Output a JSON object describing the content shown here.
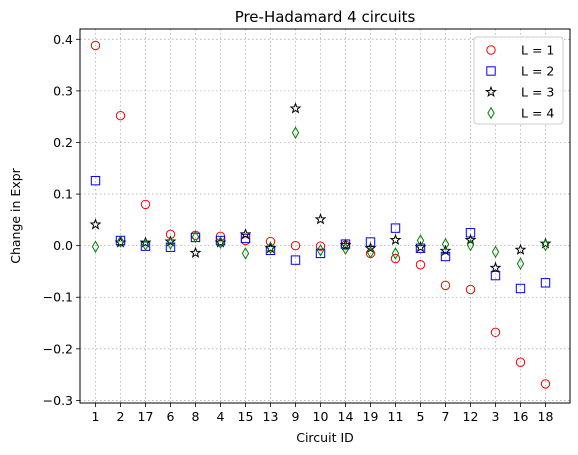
{
  "chart_data": {
    "type": "scatter",
    "title": "Pre-Hadamard 4 circuits",
    "xlabel": "Circuit ID",
    "ylabel": "Change in Expr",
    "categories": [
      "1",
      "2",
      "17",
      "6",
      "8",
      "4",
      "15",
      "13",
      "9",
      "10",
      "14",
      "19",
      "11",
      "5",
      "7",
      "12",
      "3",
      "16",
      "18"
    ],
    "ylim": [
      -0.305,
      0.42
    ],
    "yticks": [
      -0.3,
      -0.2,
      -0.1,
      0.0,
      0.1,
      0.2,
      0.3,
      0.4
    ],
    "ytick_labels": [
      "−0.3",
      "−0.2",
      "−0.1",
      "0.0",
      "0.1",
      "0.2",
      "0.3",
      "0.4"
    ],
    "grid": true,
    "legend_position": "top-right",
    "series": [
      {
        "name": "L = 1",
        "marker": "circle",
        "color": "#ff0000",
        "values": [
          0.388,
          0.252,
          0.08,
          0.022,
          0.02,
          0.018,
          0.01,
          0.008,
          0.0,
          -0.001,
          0.001,
          -0.015,
          -0.025,
          -0.037,
          -0.077,
          -0.085,
          -0.168,
          -0.226,
          -0.268
        ]
      },
      {
        "name": "L = 2",
        "marker": "square",
        "color": "#0000ff",
        "values": [
          0.126,
          0.01,
          -0.001,
          -0.003,
          0.016,
          0.01,
          0.014,
          -0.009,
          -0.028,
          -0.015,
          0.003,
          0.007,
          0.034,
          -0.005,
          -0.021,
          0.025,
          -0.058,
          -0.083,
          -0.072
        ]
      },
      {
        "name": "L = 3",
        "marker": "star",
        "color": "#000000",
        "values": [
          0.041,
          0.006,
          0.006,
          0.008,
          -0.014,
          0.006,
          0.022,
          -0.005,
          0.266,
          0.051,
          0.001,
          -0.005,
          0.011,
          -0.003,
          -0.01,
          0.011,
          -0.043,
          -0.008,
          0.004
        ]
      },
      {
        "name": "L = 4",
        "marker": "diamond",
        "color": "#008000",
        "values": [
          -0.002,
          0.008,
          0.002,
          0.004,
          0.017,
          0.006,
          -0.015,
          -0.004,
          0.219,
          -0.009,
          -0.006,
          -0.013,
          -0.015,
          0.01,
          0.003,
          0.001,
          -0.012,
          -0.035,
          0.001
        ]
      }
    ]
  }
}
